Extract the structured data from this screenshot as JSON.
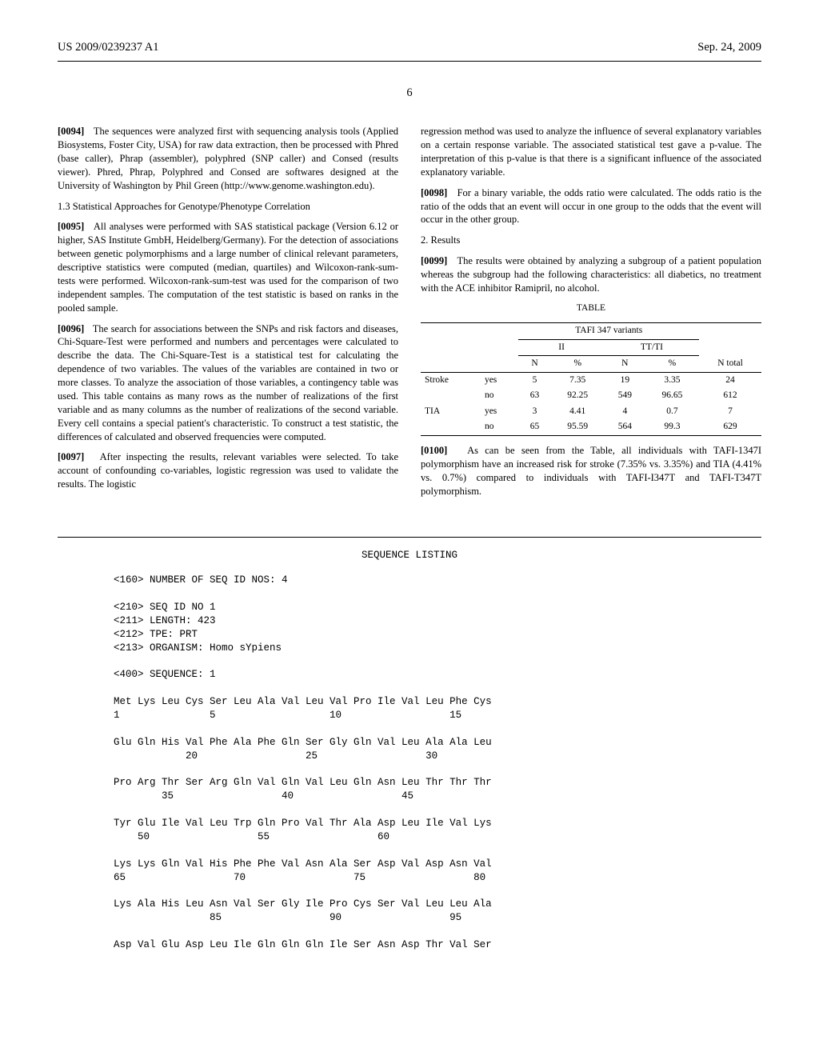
{
  "header": {
    "left": "US 2009/0239237 A1",
    "right": "Sep. 24, 2009"
  },
  "page_num": "6",
  "left_col": {
    "p0094": {
      "num": "[0094]",
      "text": "The sequences were analyzed first with sequencing analysis tools (Applied Biosystems, Foster City, USA) for raw data extraction, then be processed with Phred (base caller), Phrap (assembler), polyphred (SNP caller) and Consed (results viewer). Phred, Phrap, Polyphred and Consed are softwares designed at the University of Washington by Phil Green (http://www.genome.washington.edu)."
    },
    "sub13": "1.3 Statistical Approaches for Genotype/Phenotype Correlation",
    "p0095": {
      "num": "[0095]",
      "text": "All analyses were performed with SAS statistical package (Version 6.12 or higher, SAS Institute GmbH, Heidelberg/Germany). For the detection of associations between genetic polymorphisms and a large number of clinical relevant parameters, descriptive statistics were computed (median, quartiles) and Wilcoxon-rank-sum-tests were performed. Wilcoxon-rank-sum-test was used for the comparison of two independent samples. The computation of the test statistic is based on ranks in the pooled sample."
    },
    "p0096": {
      "num": "[0096]",
      "text": "The search for associations between the SNPs and risk factors and diseases, Chi-Square-Test were performed and numbers and percentages were calculated to describe the data. The Chi-Square-Test is a statistical test for calculating the dependence of two variables. The values of the variables are contained in two or more classes. To analyze the association of those variables, a contingency table was used. This table contains as many rows as the number of realizations of the first variable and as many columns as the number of realizations of the second variable. Every cell contains a special patient's characteristic. To construct a test statistic, the differences of calculated and observed frequencies were computed."
    },
    "p0097": {
      "num": "[0097]",
      "text": "After inspecting the results, relevant variables were selected. To take account of confounding co-variables, logistic regression was used to validate the results. The logistic"
    }
  },
  "right_col": {
    "cont97": "regression method was used to analyze the influence of several explanatory variables on a certain response variable. The associated statistical test gave a p-value. The interpretation of this p-value is that there is a significant influence of the associated explanatory variable.",
    "p0098": {
      "num": "[0098]",
      "text": "For a binary variable, the odds ratio were calculated. The odds ratio is the ratio of the odds that an event will occur in one group to the odds that the event will occur in the other group."
    },
    "sec2": "2. Results",
    "p0099": {
      "num": "[0099]",
      "text": "The results were obtained by analyzing a subgroup of a patient population whereas the subgroup had the following characteristics: all diabetics, no treatment with the ACE inhibitor Ramipril, no alcohol."
    },
    "table": {
      "title": "TABLE",
      "span_header": "TAFI 347 variants",
      "groups": {
        "g1": "II",
        "g2": "TT/TI"
      },
      "cols": {
        "n": "N",
        "pct": "%",
        "ntot": "N total"
      },
      "rows": [
        {
          "label": "Stroke",
          "yn": "yes",
          "n1": "5",
          "p1": "7.35",
          "n2": "19",
          "p2": "3.35",
          "nt": "24"
        },
        {
          "label": "",
          "yn": "no",
          "n1": "63",
          "p1": "92.25",
          "n2": "549",
          "p2": "96.65",
          "nt": "612"
        },
        {
          "label": "TIA",
          "yn": "yes",
          "n1": "3",
          "p1": "4.41",
          "n2": "4",
          "p2": "0.7",
          "nt": "7"
        },
        {
          "label": "",
          "yn": "no",
          "n1": "65",
          "p1": "95.59",
          "n2": "564",
          "p2": "99.3",
          "nt": "629"
        }
      ]
    },
    "p0100": {
      "num": "[0100]",
      "text": "As can be seen from the Table, all individuals with TAFI-1347I polymorphism have an increased risk for stroke (7.35% vs. 3.35%) and TIA (4.41% vs. 0.7%) compared to individuals with TAFI-I347T and TAFI-T347T polymorphism."
    }
  },
  "seq": {
    "title": "SEQUENCE LISTING",
    "lines": [
      "<160> NUMBER OF SEQ ID NOS: 4",
      "",
      "<210> SEQ ID NO 1",
      "<211> LENGTH: 423",
      "<212> TPE: PRT",
      "<213> ORGANISM: Homo sYpiens",
      "",
      "<400> SEQUENCE: 1",
      "",
      "Met Lys Leu Cys Ser Leu Ala Val Leu Val Pro Ile Val Leu Phe Cys",
      "1               5                   10                  15",
      "",
      "Glu Gln His Val Phe Ala Phe Gln Ser Gly Gln Val Leu Ala Ala Leu",
      "            20                  25                  30",
      "",
      "Pro Arg Thr Ser Arg Gln Val Gln Val Leu Gln Asn Leu Thr Thr Thr",
      "        35                  40                  45",
      "",
      "Tyr Glu Ile Val Leu Trp Gln Pro Val Thr Ala Asp Leu Ile Val Lys",
      "    50                  55                  60",
      "",
      "Lys Lys Gln Val His Phe Phe Val Asn Ala Ser Asp Val Asp Asn Val",
      "65                  70                  75                  80",
      "",
      "Lys Ala His Leu Asn Val Ser Gly Ile Pro Cys Ser Val Leu Leu Ala",
      "                85                  90                  95",
      "",
      "Asp Val Glu Asp Leu Ile Gln Gln Gln Ile Ser Asn Asp Thr Val Ser"
    ]
  }
}
